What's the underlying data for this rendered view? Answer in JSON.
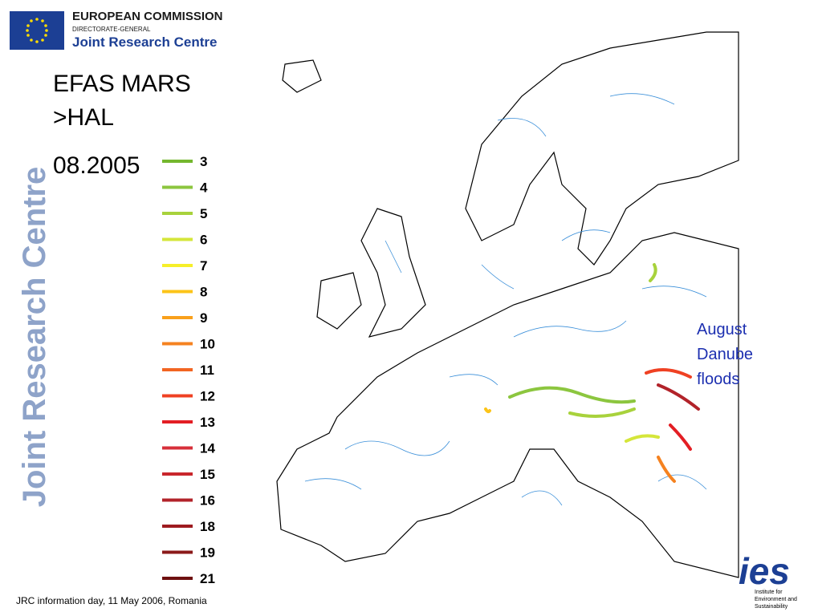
{
  "header": {
    "org": "EUROPEAN COMMISSION",
    "dg": "DIRECTORATE-GENERAL",
    "centre": "Joint Research Centre"
  },
  "title": {
    "lines": [
      "EFAS MARS",
      ">HAL"
    ],
    "date": "08.2005"
  },
  "side_label": "Joint Research Centre",
  "legend": {
    "items": [
      {
        "label": 3,
        "color": "#74b72e"
      },
      {
        "label": 4,
        "color": "#8cc63f"
      },
      {
        "label": 5,
        "color": "#a8d23c"
      },
      {
        "label": 6,
        "color": "#d5e63a"
      },
      {
        "label": 7,
        "color": "#f6ef2a"
      },
      {
        "label": 8,
        "color": "#fcc419"
      },
      {
        "label": 9,
        "color": "#f9a01b"
      },
      {
        "label": 10,
        "color": "#f58220"
      },
      {
        "label": 11,
        "color": "#f26522"
      },
      {
        "label": 12,
        "color": "#ef4123"
      },
      {
        "label": 13,
        "color": "#e31e24"
      },
      {
        "label": 14,
        "color": "#d7303a"
      },
      {
        "label": 15,
        "color": "#c9262c"
      },
      {
        "label": 16,
        "color": "#b2232a"
      },
      {
        "label": 18,
        "color": "#9e1b20"
      },
      {
        "label": 19,
        "color": "#8b1a1a"
      },
      {
        "label": 21,
        "color": "#6e1010"
      }
    ]
  },
  "annotation": {
    "lines": [
      "August",
      "Danube",
      "floods"
    ]
  },
  "logo": {
    "mark": "ies",
    "lines": [
      "Institute for",
      "Environment and",
      "Sustainability"
    ]
  },
  "footer": "JRC information day, 11 May 2006, Romania"
}
